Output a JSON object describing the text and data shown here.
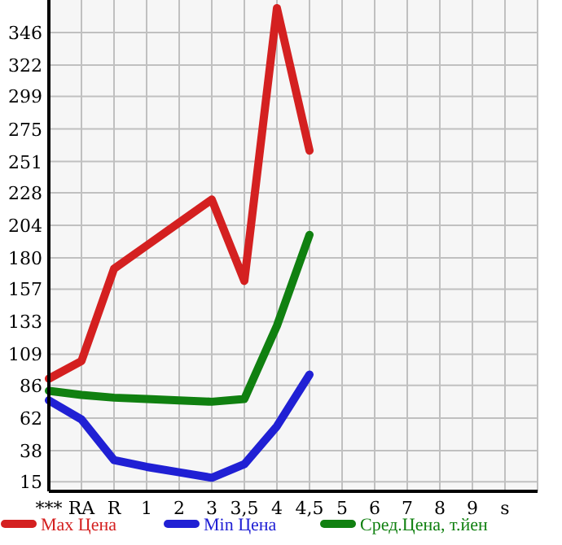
{
  "chart_data": {
    "type": "line",
    "categories": [
      "***",
      "RA",
      "R",
      "1",
      "2",
      "3",
      "3,5",
      "4",
      "4,5",
      "5",
      "6",
      "7",
      "8",
      "9",
      "s"
    ],
    "series": [
      {
        "name": "Max Цена",
        "color": "#d42020",
        "values": [
          91,
          104,
          172,
          189,
          206,
          223,
          163,
          364,
          259,
          null,
          null,
          null,
          null,
          null,
          null
        ]
      },
      {
        "name": "Min Цена",
        "color": "#2020d4",
        "values": [
          75,
          61,
          31,
          26,
          22,
          18,
          28,
          56,
          94,
          null,
          null,
          null,
          null,
          null,
          null
        ]
      },
      {
        "name": "Сред.Цена, т.йен",
        "color": "#108010",
        "values": [
          82,
          79,
          77,
          76,
          75,
          74,
          76,
          130,
          197,
          null,
          null,
          null,
          null,
          null,
          null
        ]
      }
    ],
    "ylim": [
      8,
      370
    ],
    "yticks": [
      15,
      38,
      62,
      86,
      109,
      133,
      157,
      180,
      204,
      228,
      251,
      275,
      299,
      322,
      346
    ],
    "grid": true,
    "legend": "bottom",
    "marker": "none",
    "line_style": "solid"
  }
}
